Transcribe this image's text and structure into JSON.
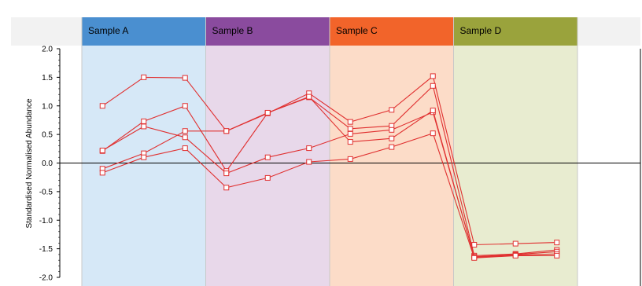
{
  "chart_data": {
    "type": "line",
    "ylabel": "Standardised Normalised Abundance",
    "ylim": [
      -2.0,
      2.0
    ],
    "yticks": [
      2.0,
      1.5,
      1.0,
      0.5,
      0.0,
      -0.5,
      -1.0,
      -1.5,
      -2.0
    ],
    "ytick_labels": [
      "2.0",
      "1.5",
      "1.0",
      "0.5",
      "0.0",
      "-0.5",
      "-1.0",
      "-1.5",
      "-2.0"
    ],
    "grid": false,
    "line_color": "#e03030",
    "groups": [
      {
        "label": "Sample A",
        "header_color": "#4a8fd0",
        "band_color": "#d6e8f7",
        "x": [
          1,
          2,
          3
        ]
      },
      {
        "label": "Sample B",
        "header_color": "#8a4b9e",
        "band_color": "#e8d8ea",
        "x": [
          4,
          5,
          6
        ]
      },
      {
        "label": "Sample C",
        "header_color": "#f2642a",
        "band_color": "#fcdcc8",
        "x": [
          7,
          8,
          9
        ]
      },
      {
        "label": "Sample D",
        "header_color": "#9aa33c",
        "band_color": "#e8ecd0",
        "x": [
          10,
          11,
          12
        ]
      }
    ],
    "x": [
      1,
      2,
      3,
      4,
      5,
      6,
      7,
      8,
      9,
      10,
      11,
      12
    ],
    "series": [
      {
        "values": [
          1.0,
          1.5,
          1.49,
          0.56,
          0.87,
          1.22,
          0.72,
          0.93,
          1.52,
          -1.43,
          -1.41,
          -1.39
        ]
      },
      {
        "values": [
          0.21,
          0.73,
          1.0,
          -0.14,
          0.88,
          1.15,
          0.6,
          0.65,
          1.35,
          -1.62,
          -1.59,
          -1.52
        ]
      },
      {
        "values": [
          0.22,
          0.64,
          0.45,
          -0.18,
          0.1,
          0.26,
          0.51,
          0.58,
          0.89,
          -1.64,
          -1.6,
          -1.55
        ]
      },
      {
        "values": [
          -0.1,
          0.17,
          0.56,
          0.56,
          0.88,
          1.16,
          0.37,
          0.43,
          0.92,
          -1.65,
          -1.61,
          -1.59
        ]
      },
      {
        "values": [
          -0.17,
          0.1,
          0.26,
          -0.43,
          -0.26,
          0.02,
          0.07,
          0.28,
          0.52,
          -1.66,
          -1.62,
          -1.62
        ]
      }
    ]
  }
}
